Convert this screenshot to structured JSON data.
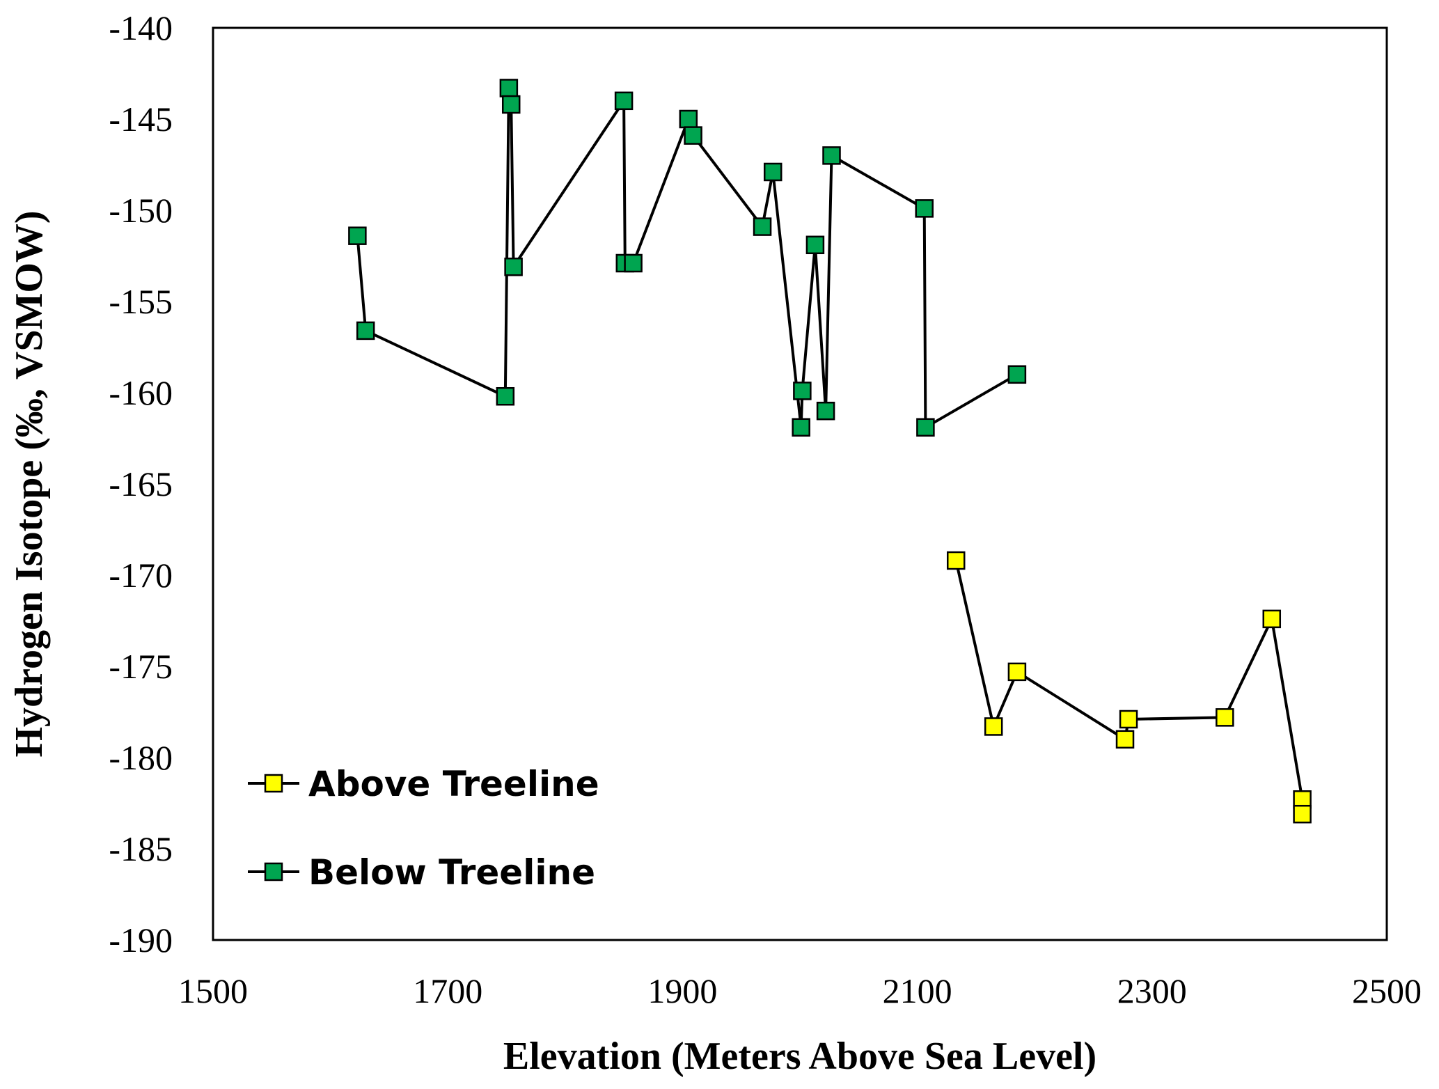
{
  "chart_data": {
    "type": "scatter",
    "title": "",
    "xlabel": "Elevation (Meters Above Sea Level)",
    "ylabel": "Hydrogen Isotope (‰, VSMOW)",
    "xlim": [
      1500,
      2500
    ],
    "ylim": [
      -190,
      -140
    ],
    "x_ticks": [
      1500,
      1700,
      1900,
      2100,
      2300,
      2500
    ],
    "y_ticks": [
      -140,
      -145,
      -150,
      -155,
      -160,
      -165,
      -170,
      -175,
      -180,
      -185,
      -190
    ],
    "grid": false,
    "legend_position": "bottom-left",
    "series": [
      {
        "name": "Above Treeline",
        "marker": "square",
        "color": "#ffff00",
        "line_color": "#000000",
        "x": [
          2133,
          2165,
          2185,
          2277,
          2280,
          2362,
          2402,
          2428,
          2428
        ],
        "y": [
          -169.2,
          -178.3,
          -175.3,
          -179.0,
          -177.9,
          -177.8,
          -172.4,
          -182.3,
          -183.1
        ]
      },
      {
        "name": "Below Treeline",
        "marker": "square",
        "color": "#00a550",
        "line_color": "#000000",
        "x": [
          1623,
          1630,
          1749,
          1752,
          1754,
          1756,
          1850,
          1851,
          1858,
          1905,
          1909,
          1968,
          1977,
          2001,
          2002,
          2013,
          2022,
          2027,
          2106,
          2107,
          2185
        ],
        "y": [
          -151.4,
          -156.6,
          -160.2,
          -143.3,
          -144.2,
          -153.1,
          -144.0,
          -152.9,
          -152.9,
          -145.0,
          -145.9,
          -150.9,
          -147.9,
          -161.9,
          -159.9,
          -151.9,
          -161.0,
          -147.0,
          -149.9,
          -161.9,
          -159.0
        ]
      }
    ]
  }
}
